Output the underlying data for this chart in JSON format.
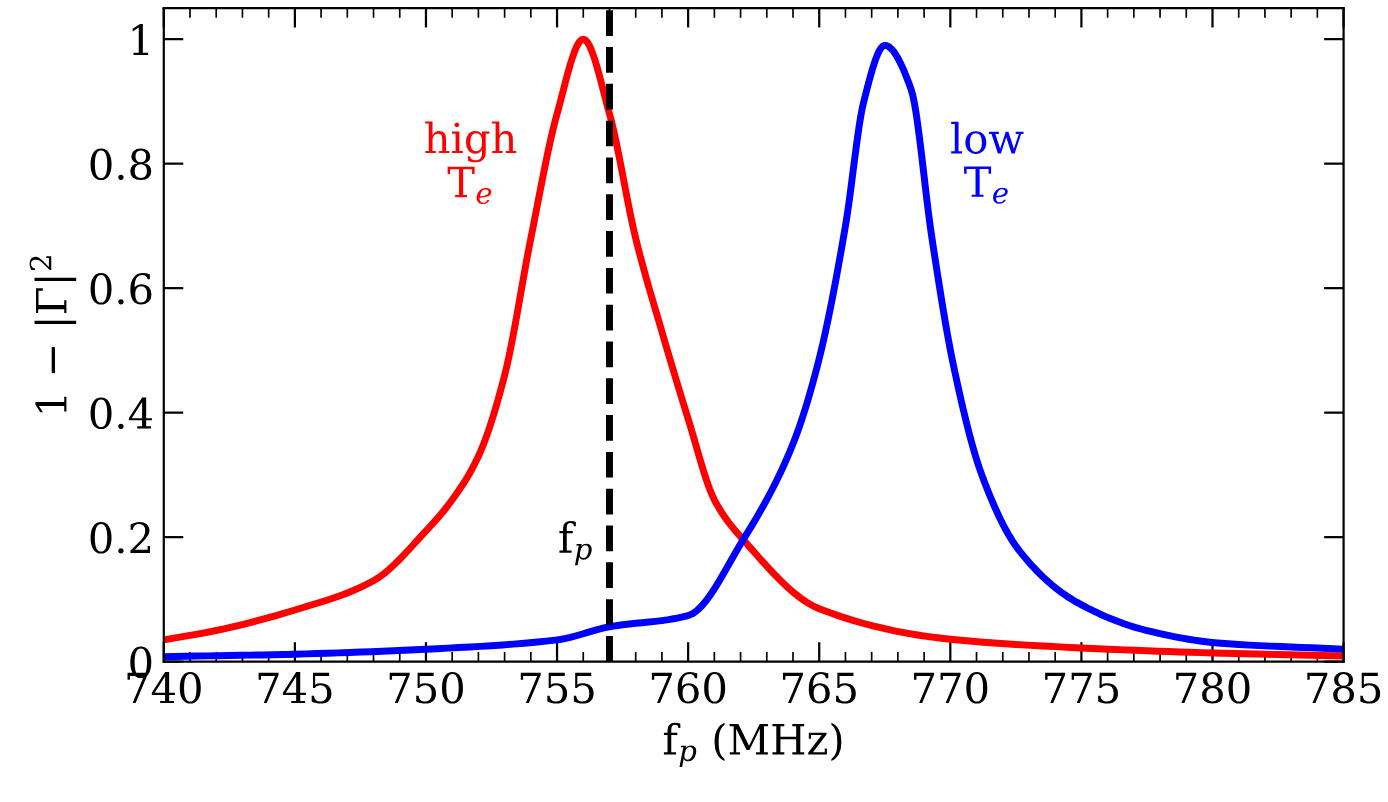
{
  "chart_data": {
    "type": "line",
    "xlabel": "f$_{p}$ (MHz)",
    "ylabel": "1 − |Γ|$^{2}$",
    "xlim": [
      740,
      785
    ],
    "xticks": [
      740,
      745,
      750,
      755,
      760,
      765,
      770,
      775,
      780,
      785
    ],
    "ylim": [
      0,
      1.05
    ],
    "yticks": [
      0,
      0.2,
      0.4,
      0.6,
      0.8,
      1
    ],
    "grid": false,
    "legend": false,
    "line_style": "solid",
    "marker": "none",
    "ref_lines": [
      {
        "axis": "x",
        "value": 757.0,
        "label": "f$_{p}$",
        "color": "#000000",
        "line_style": "dashed"
      }
    ],
    "series": [
      {
        "name": "high\nT$_{e}$",
        "color": "#ff0000",
        "x": [
          740,
          742,
          745,
          748,
          750,
          751,
          752,
          753,
          754,
          755,
          756,
          757,
          758,
          759,
          760,
          761,
          762.1,
          765,
          770,
          775,
          780,
          785
        ],
        "values": [
          0.035,
          0.05,
          0.083,
          0.13,
          0.21,
          0.26,
          0.33,
          0.46,
          0.68,
          0.88,
          1.0,
          0.88,
          0.68,
          0.53,
          0.39,
          0.26,
          0.196,
          0.085,
          0.036,
          0.022,
          0.014,
          0.009
        ]
      },
      {
        "name": "low\nT$_{e}$",
        "color": "#0000ff",
        "x": [
          740,
          745,
          750,
          755,
          757,
          760,
          762.1,
          764,
          765,
          766,
          766.7,
          767.5,
          768.5,
          769.3,
          770.1,
          771.2,
          772.6,
          774.8,
          777.5,
          780.2,
          785
        ],
        "values": [
          0.008,
          0.012,
          0.02,
          0.035,
          0.056,
          0.074,
          0.196,
          0.35,
          0.487,
          0.7,
          0.9,
          0.99,
          0.92,
          0.68,
          0.48,
          0.3,
          0.18,
          0.096,
          0.05,
          0.03,
          0.02
        ]
      }
    ]
  }
}
